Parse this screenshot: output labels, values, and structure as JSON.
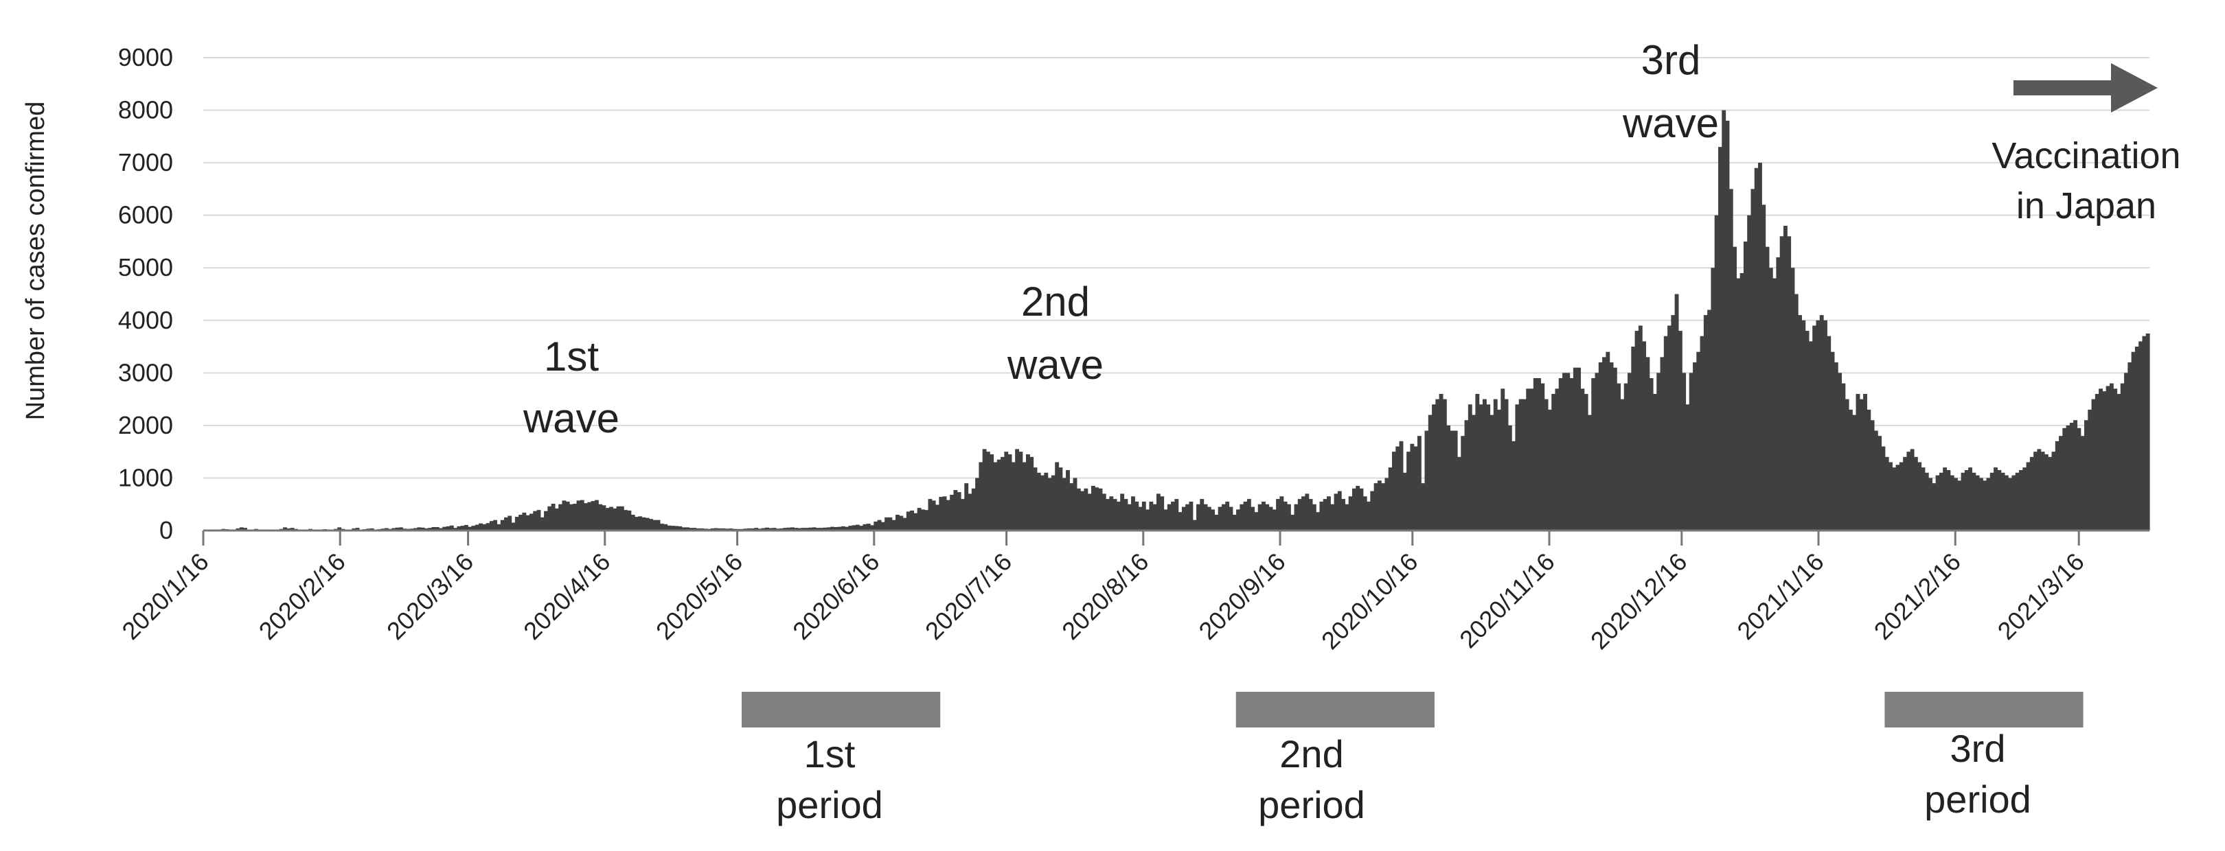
{
  "chart_data": {
    "type": "bar",
    "title": "",
    "xlabel": "",
    "ylabel": "Number of cases confirmed",
    "ylim": [
      0,
      9000
    ],
    "yticks": [
      0,
      1000,
      2000,
      3000,
      4000,
      5000,
      6000,
      7000,
      8000,
      9000
    ],
    "grid": true,
    "bar_color": "#404040",
    "xticks": [
      "2020/1/16",
      "2020/2/16",
      "2020/3/16",
      "2020/4/16",
      "2020/5/16",
      "2020/6/16",
      "2020/7/16",
      "2020/8/16",
      "2020/9/16",
      "2020/10/16",
      "2020/11/16",
      "2020/12/16",
      "2021/1/16",
      "2021/2/16",
      "2021/3/16"
    ],
    "series": [
      {
        "x_start": "2020/1/16",
        "x_end": "2021/3/31",
        "values": [
          0,
          0,
          0,
          10,
          20,
          30,
          25,
          15,
          10,
          40,
          60,
          50,
          20,
          10,
          30,
          20,
          10,
          20,
          5,
          10,
          10,
          30,
          60,
          40,
          50,
          30,
          20,
          10,
          20,
          30,
          10,
          10,
          20,
          25,
          10,
          10,
          30,
          60,
          30,
          10,
          20,
          40,
          50,
          15,
          25,
          35,
          40,
          10,
          25,
          35,
          45,
          30,
          45,
          55,
          60,
          35,
          30,
          35,
          45,
          60,
          55,
          40,
          50,
          65,
          65,
          45,
          70,
          80,
          95,
          50,
          80,
          90,
          105,
          70,
          90,
          110,
          135,
          120,
          140,
          180,
          200,
          120,
          200,
          250,
          280,
          150,
          260,
          300,
          340,
          290,
          320,
          370,
          390,
          250,
          370,
          460,
          510,
          420,
          500,
          570,
          550,
          500,
          510,
          570,
          580,
          520,
          540,
          560,
          580,
          500,
          480,
          430,
          450,
          420,
          460,
          460,
          390,
          380,
          300,
          260,
          270,
          250,
          240,
          220,
          200,
          200,
          130,
          120,
          95,
          90,
          85,
          80,
          60,
          60,
          50,
          50,
          40,
          40,
          35,
          30,
          40,
          45,
          40,
          40,
          35,
          38,
          30,
          28,
          28,
          35,
          40,
          40,
          50,
          35,
          45,
          55,
          45,
          50,
          35,
          40,
          50,
          55,
          60,
          50,
          45,
          50,
          50,
          55,
          60,
          50,
          50,
          55,
          60,
          70,
          65,
          70,
          80,
          70,
          90,
          100,
          110,
          90,
          120,
          130,
          100,
          170,
          200,
          160,
          250,
          250,
          200,
          300,
          280,
          240,
          360,
          380,
          330,
          430,
          400,
          390,
          600,
          570,
          490,
          640,
          650,
          580,
          680,
          770,
          730,
          600,
          900,
          700,
          800,
          1000,
          1300,
          1550,
          1500,
          1450,
          1300,
          1350,
          1400,
          1500,
          1450,
          1300,
          1550,
          1500,
          1300,
          1450,
          1400,
          1200,
          1100,
          1050,
          1100,
          1000,
          1050,
          1300,
          1200,
          1000,
          1150,
          900,
          1000,
          800,
          750,
          800,
          700,
          850,
          820,
          800,
          700,
          600,
          650,
          600,
          550,
          700,
          600,
          500,
          650,
          550,
          450,
          550,
          400,
          550,
          500,
          700,
          650,
          400,
          500,
          550,
          600,
          350,
          450,
          500,
          550,
          200,
          500,
          600,
          500,
          450,
          400,
          300,
          450,
          500,
          550,
          450,
          300,
          400,
          500,
          550,
          600,
          450,
          350,
          500,
          550,
          500,
          450,
          400,
          600,
          650,
          550,
          500,
          300,
          500,
          600,
          650,
          700,
          600,
          500,
          350,
          550,
          600,
          650,
          500,
          700,
          750,
          600,
          500,
          650,
          800,
          850,
          800,
          650,
          550,
          750,
          900,
          950,
          900,
          1000,
          1200,
          1500,
          1600,
          1700,
          1100,
          1500,
          1650,
          1600,
          1800,
          900,
          1900,
          2200,
          2400,
          2500,
          2600,
          2500,
          2000,
          1900,
          1900,
          1400,
          1800,
          2100,
          2400,
          2200,
          2600,
          2400,
          2500,
          2400,
          2200,
          2500,
          2300,
          2700,
          2500,
          2000,
          1700,
          2400,
          2500,
          2500,
          2700,
          2700,
          2900,
          2900,
          2800,
          2500,
          2300,
          2600,
          2700,
          2900,
          3000,
          3000,
          2900,
          3100,
          3100,
          2700,
          2600,
          2200,
          2900,
          3000,
          3200,
          3300,
          3400,
          3200,
          3100,
          2800,
          2500,
          2800,
          3000,
          3500,
          3800,
          3900,
          3600,
          3300,
          2900,
          2600,
          3000,
          3300,
          3700,
          3900,
          4100,
          4500,
          3800,
          3000,
          2400,
          3000,
          3200,
          3400,
          3700,
          4100,
          4200,
          5000,
          6000,
          7300,
          8000,
          7800,
          6500,
          5400,
          4800,
          4900,
          5500,
          6000,
          6500,
          6900,
          7000,
          6200,
          5400,
          5000,
          4800,
          5200,
          5600,
          5800,
          5600,
          5000,
          4500,
          4100,
          4000,
          3800,
          3600,
          3900,
          4000,
          4100,
          4000,
          3700,
          3400,
          3200,
          3000,
          2800,
          2500,
          2300,
          2200,
          2600,
          2500,
          2600,
          2300,
          2100,
          1900,
          1800,
          1600,
          1400,
          1300,
          1200,
          1250,
          1300,
          1400,
          1500,
          1550,
          1400,
          1300,
          1200,
          1100,
          1000,
          900,
          1050,
          1100,
          1200,
          1150,
          1050,
          1000,
          950,
          1100,
          1150,
          1200,
          1100,
          1050,
          1000,
          950,
          1000,
          1100,
          1200,
          1150,
          1100,
          1050,
          1000,
          1050,
          1100,
          1150,
          1200,
          1300,
          1400,
          1500,
          1550,
          1500,
          1450,
          1400,
          1500,
          1700,
          1800,
          1950,
          2000,
          2050,
          2100,
          1950,
          1800,
          2100,
          2300,
          2500,
          2600,
          2700,
          2650,
          2750,
          2800,
          2700,
          2600,
          2800,
          3000,
          3200,
          3400,
          3500,
          3600,
          3700,
          3750
        ]
      }
    ],
    "annotations": [
      {
        "line1": "1st",
        "line2": "wave"
      },
      {
        "line1": "2nd",
        "line2": "wave"
      },
      {
        "line1": "3rd",
        "line2": "wave"
      },
      {
        "line1": "Vaccination",
        "line2": "in Japan"
      }
    ],
    "periods": [
      {
        "line1": "1st",
        "line2": "period",
        "start": "2020/5/17",
        "end": "2020/7/1"
      },
      {
        "line1": "2nd",
        "line2": "period",
        "start": "2020/9/6",
        "end": "2020/10/21"
      },
      {
        "line1": "3rd",
        "line2": "period",
        "start": "2021/1/31",
        "end": "2021/3/17"
      }
    ],
    "period_color": "#808080",
    "arrow_color": "#595959"
  }
}
